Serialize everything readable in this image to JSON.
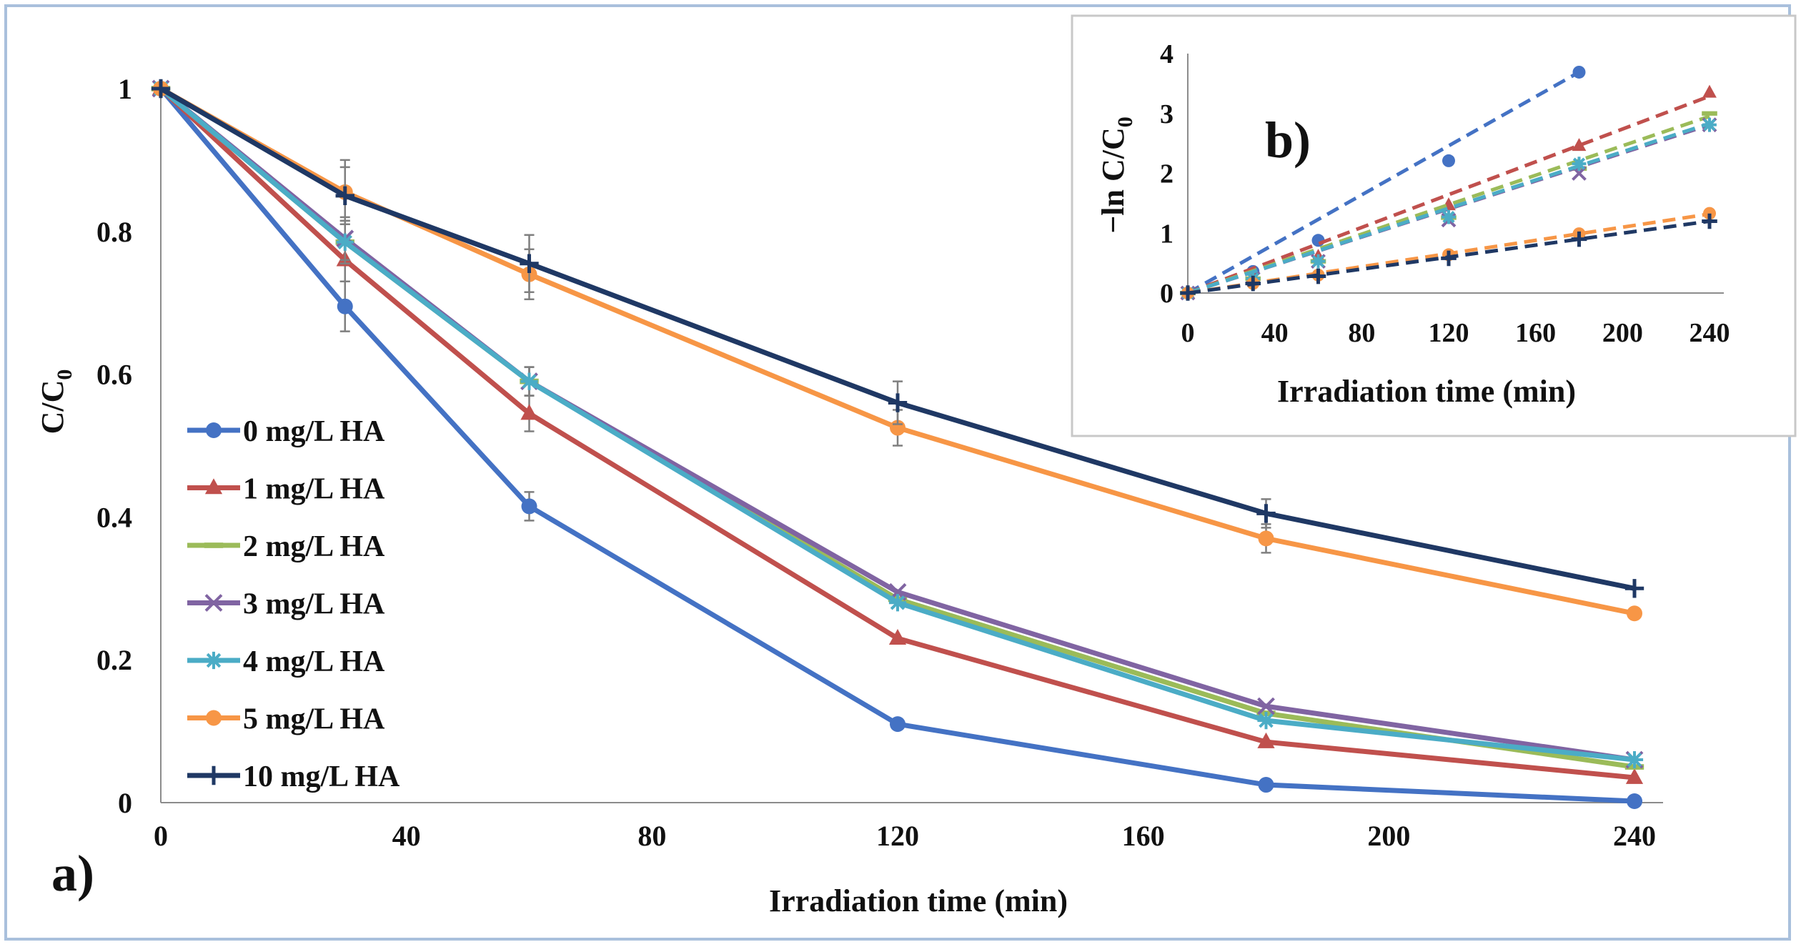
{
  "chart_data": [
    {
      "type": "line",
      "panel_label": "a)",
      "xlabel": "Irradiation time (min)",
      "ylabel": "C/C",
      "ylabel_sub": "0",
      "x": [
        0,
        30,
        60,
        120,
        180,
        240
      ],
      "xlim": [
        0,
        240
      ],
      "ylim": [
        0,
        1
      ],
      "xticks": [
        "0",
        "40",
        "80",
        "120",
        "160",
        "200",
        "240"
      ],
      "yticks": [
        "0",
        "0.2",
        "0.4",
        "0.6",
        "0.8",
        "1"
      ],
      "legend_position": "center-left",
      "series": [
        {
          "name": "0 mg/L HA",
          "color": "#4472c4",
          "marker": "circle",
          "values": [
            1,
            0.695,
            0.415,
            0.11,
            0.025,
            0.002
          ],
          "errors": [
            0,
            0.035,
            0.02,
            0,
            0,
            0
          ]
        },
        {
          "name": "1 mg/L HA",
          "color": "#c0504d",
          "marker": "triangle",
          "values": [
            1,
            0.76,
            0.545,
            0.23,
            0.085,
            0.035
          ],
          "errors": [
            0,
            0.03,
            0.025,
            0,
            0,
            0
          ]
        },
        {
          "name": "2 mg/L HA",
          "color": "#9bbb59",
          "marker": "dash",
          "values": [
            1,
            0.785,
            0.59,
            0.285,
            0.125,
            0.05
          ],
          "errors": [
            0,
            0.03,
            0.02,
            0,
            0,
            0
          ]
        },
        {
          "name": "3 mg/L HA",
          "color": "#8064a2",
          "marker": "cross",
          "values": [
            1,
            0.79,
            0.59,
            0.295,
            0.135,
            0.06
          ],
          "errors": [
            0,
            0.03,
            0.02,
            0,
            0,
            0
          ]
        },
        {
          "name": "4 mg/L HA",
          "color": "#4bacc6",
          "marker": "star",
          "values": [
            1,
            0.785,
            0.59,
            0.28,
            0.115,
            0.06
          ],
          "errors": [
            0,
            0.03,
            0.02,
            0,
            0,
            0
          ]
        },
        {
          "name": "5 mg/L HA",
          "color": "#f79646",
          "marker": "circle",
          "values": [
            1,
            0.855,
            0.74,
            0.525,
            0.37,
            0.265
          ],
          "errors": [
            0,
            0.045,
            0.035,
            0.025,
            0.02,
            0
          ]
        },
        {
          "name": "10 mg/L HA",
          "color": "#1f3864",
          "marker": "plus",
          "values": [
            1,
            0.85,
            0.755,
            0.56,
            0.405,
            0.3
          ],
          "errors": [
            0,
            0.04,
            0.04,
            0.03,
            0.02,
            0
          ]
        }
      ]
    },
    {
      "type": "scatter",
      "panel_label": "b)",
      "xlabel": "Irradiation time (min)",
      "ylabel": "−ln C/C",
      "ylabel_sub": "0",
      "xlim": [
        0,
        240
      ],
      "ylim": [
        0,
        4
      ],
      "xticks": [
        "0",
        "40",
        "80",
        "120",
        "160",
        "200",
        "240"
      ],
      "yticks": [
        "0",
        "1",
        "2",
        "3",
        "4"
      ],
      "series": [
        {
          "name": "0 mg/L HA",
          "color": "#4472c4",
          "x": [
            0,
            30,
            60,
            120,
            180
          ],
          "values": [
            0,
            0.36,
            0.88,
            2.21,
            3.69
          ],
          "fit_slope": 0.0205
        },
        {
          "name": "1 mg/L HA",
          "color": "#c0504d",
          "x": [
            0,
            30,
            60,
            120,
            180,
            240
          ],
          "values": [
            0,
            0.27,
            0.61,
            1.47,
            2.46,
            3.35
          ],
          "fit_slope": 0.0137
        },
        {
          "name": "2 mg/L HA",
          "color": "#9bbb59",
          "x": [
            0,
            30,
            60,
            120,
            180,
            240
          ],
          "values": [
            0,
            0.24,
            0.53,
            1.26,
            2.08,
            3.0
          ],
          "fit_slope": 0.0123
        },
        {
          "name": "3 mg/L HA",
          "color": "#8064a2",
          "x": [
            0,
            30,
            60,
            120,
            180,
            240
          ],
          "values": [
            0,
            0.24,
            0.53,
            1.22,
            2.0,
            2.81
          ],
          "fit_slope": 0.0117
        },
        {
          "name": "4 mg/L HA",
          "color": "#4bacc6",
          "x": [
            0,
            30,
            60,
            120,
            180,
            240
          ],
          "values": [
            0,
            0.24,
            0.53,
            1.27,
            2.16,
            2.81
          ],
          "fit_slope": 0.0118
        },
        {
          "name": "5 mg/L HA",
          "color": "#f79646",
          "x": [
            0,
            30,
            60,
            120,
            180,
            240
          ],
          "values": [
            0,
            0.16,
            0.3,
            0.64,
            0.99,
            1.33
          ],
          "fit_slope": 0.0055
        },
        {
          "name": "10 mg/L HA",
          "color": "#1f3864",
          "x": [
            0,
            30,
            60,
            120,
            180,
            240
          ],
          "values": [
            0,
            0.16,
            0.28,
            0.58,
            0.9,
            1.2
          ],
          "fit_slope": 0.005
        }
      ]
    }
  ]
}
